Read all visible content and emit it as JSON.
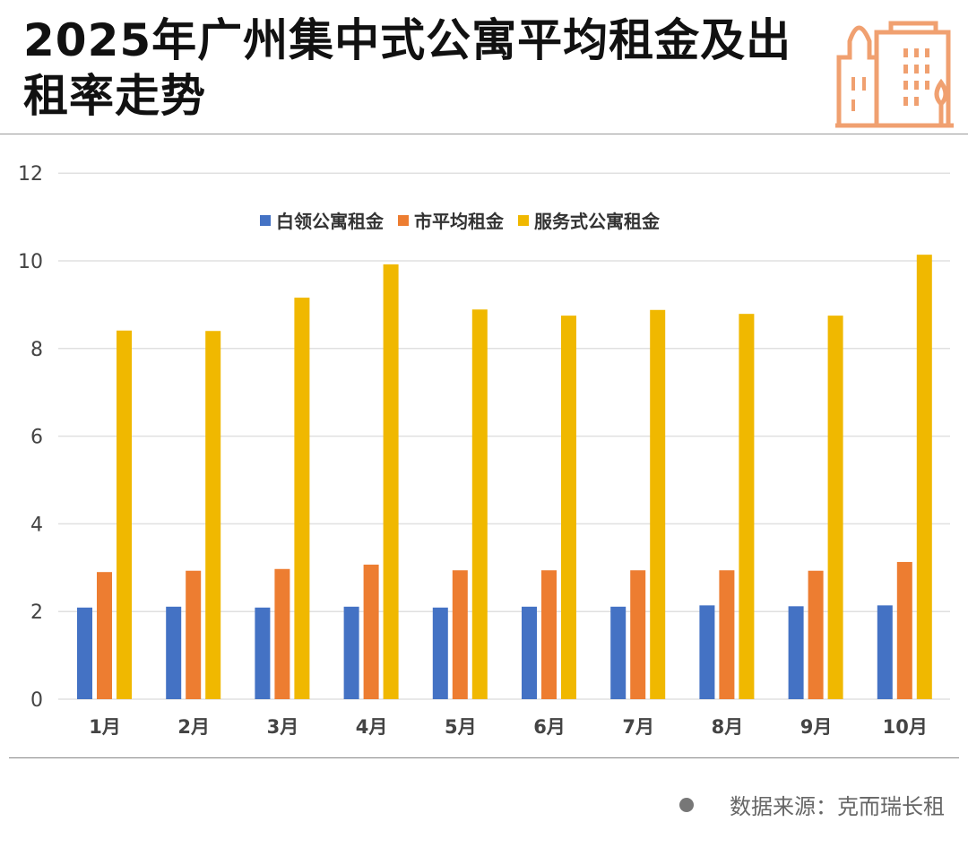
{
  "title": "2025年广州集中式公寓平均租金及出租率走势",
  "source": "数据来源：克而瑞长租",
  "icon": "city-buildings-icon",
  "chart_data": {
    "type": "bar",
    "title": "",
    "xlabel": "",
    "ylabel": "",
    "ylim": [
      0,
      12
    ],
    "yticks": [
      0,
      2,
      4,
      6,
      8,
      10,
      12
    ],
    "grid": true,
    "legend_position": "top-center",
    "categories": [
      "1月",
      "2月",
      "3月",
      "4月",
      "5月",
      "6月",
      "7月",
      "8月",
      "9月",
      "10月"
    ],
    "series": [
      {
        "name": "白领公寓租金",
        "color": "#4472C4",
        "values": [
          2.09,
          2.11,
          2.09,
          2.11,
          2.09,
          2.11,
          2.11,
          2.14,
          2.12,
          2.14
        ]
      },
      {
        "name": "市平均租金",
        "color": "#ED7D31",
        "values": [
          2.9,
          2.93,
          2.97,
          3.07,
          2.94,
          2.94,
          2.94,
          2.94,
          2.93,
          3.13
        ]
      },
      {
        "name": "服务式公寓租金",
        "color": "#F0B800",
        "values": [
          8.41,
          8.4,
          9.16,
          9.92,
          8.89,
          8.75,
          8.88,
          8.79,
          8.75,
          10.14
        ]
      }
    ]
  }
}
